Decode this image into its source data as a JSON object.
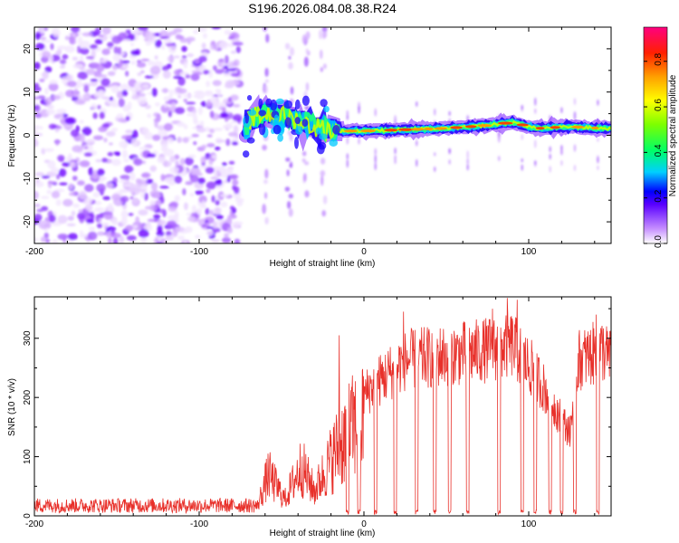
{
  "figure_title": "S196.2026.084.08.38.R24",
  "chart_data": [
    {
      "type": "heatmap",
      "title": "S196.2026.084.08.38.R24",
      "xlabel": "Height of straight line (km)",
      "ylabel": "Frequency (Hz)",
      "xlim": [
        -200,
        150
      ],
      "ylim": [
        -25,
        25
      ],
      "xticks": [
        -200,
        -100,
        0,
        100
      ],
      "yticks": [
        -20,
        -10,
        0,
        10,
        20
      ],
      "colorbar": {
        "label": "Normalized spectral amplitude",
        "range": [
          0.0,
          0.95
        ],
        "ticks": [
          0.0,
          0.2,
          0.4,
          0.6,
          0.8
        ]
      },
      "noise_region_km": [
        -200,
        -75
      ],
      "line_center_freq": [
        {
          "km": -70,
          "hz": 3.5
        },
        {
          "km": -60,
          "hz": 5
        },
        {
          "km": -45,
          "hz": 4
        },
        {
          "km": -30,
          "hz": 2
        },
        {
          "km": -15,
          "hz": 1
        },
        {
          "km": 0,
          "hz": 1
        },
        {
          "km": 25,
          "hz": 1.3
        },
        {
          "km": 50,
          "hz": 1.6
        },
        {
          "km": 75,
          "hz": 2.3
        },
        {
          "km": 90,
          "hz": 3
        },
        {
          "km": 105,
          "hz": 1.6
        },
        {
          "km": 125,
          "hz": 2
        },
        {
          "km": 150,
          "hz": 1.5
        }
      ]
    },
    {
      "type": "line",
      "xlabel": "Height of straight line (km)",
      "ylabel": "SNR (10 * v/v)",
      "xlim": [
        -200,
        150
      ],
      "ylim": [
        0,
        370
      ],
      "xticks": [
        -200,
        -100,
        0,
        100
      ],
      "yticks": [
        0,
        100,
        200,
        300
      ],
      "color": "#e8302a",
      "envelope": [
        {
          "km": -200,
          "snr": 20
        },
        {
          "km": -65,
          "snr": 20
        },
        {
          "km": -58,
          "snr": 100
        },
        {
          "km": -48,
          "snr": 40
        },
        {
          "km": -38,
          "snr": 120
        },
        {
          "km": -30,
          "snr": 60
        },
        {
          "km": -18,
          "snr": 150
        },
        {
          "km": -10,
          "snr": 200
        },
        {
          "km": 5,
          "snr": 250
        },
        {
          "km": 25,
          "snr": 300
        },
        {
          "km": 50,
          "snr": 310
        },
        {
          "km": 75,
          "snr": 320
        },
        {
          "km": 90,
          "snr": 330
        },
        {
          "km": 105,
          "snr": 270
        },
        {
          "km": 125,
          "snr": 160
        },
        {
          "km": 130,
          "snr": 300
        },
        {
          "km": 145,
          "snr": 320
        },
        {
          "km": 150,
          "snr": 300
        }
      ],
      "dropouts_km": [
        -10,
        -3,
        7,
        19,
        32,
        43,
        52,
        63,
        82,
        96,
        104,
        113,
        120,
        128,
        142
      ],
      "spikes": [
        {
          "km": -15,
          "snr": 305
        },
        {
          "km": 24,
          "snr": 345
        },
        {
          "km": 78,
          "snr": 350
        },
        {
          "km": 87,
          "snr": 368
        },
        {
          "km": 93,
          "snr": 365
        },
        {
          "km": 141,
          "snr": 340
        }
      ]
    }
  ]
}
